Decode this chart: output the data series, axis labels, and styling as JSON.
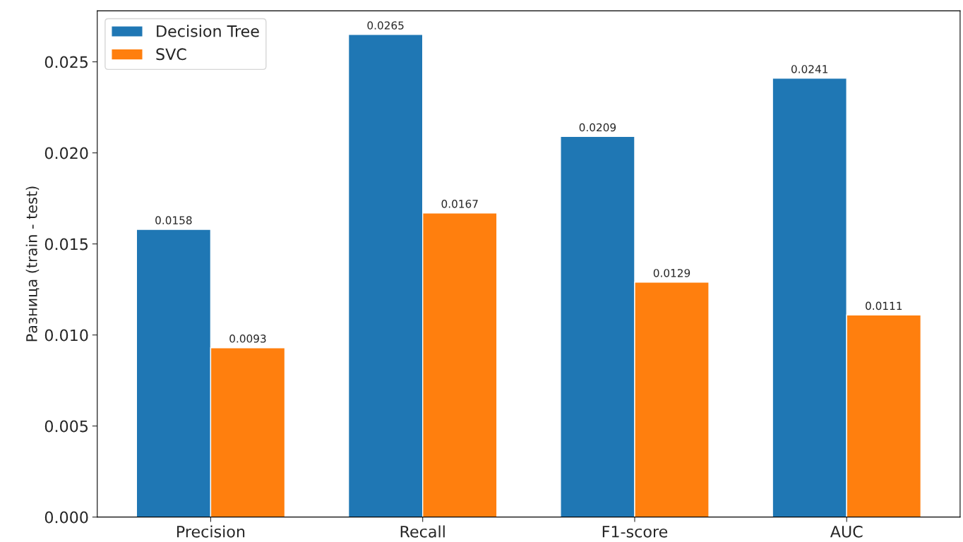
{
  "chart_data": {
    "type": "bar",
    "ylabel": "Разница (train - test)",
    "categories": [
      "Precision",
      "Recall",
      "F1-score",
      "AUC"
    ],
    "series": [
      {
        "name": "Decision Tree",
        "color": "#1f77b4",
        "values": [
          0.0158,
          0.0265,
          0.0209,
          0.0241
        ]
      },
      {
        "name": "SVC",
        "color": "#ff7f0e",
        "values": [
          0.0093,
          0.0167,
          0.0129,
          0.0111
        ]
      }
    ],
    "ylim": [
      0,
      0.0278
    ],
    "yticks": [
      "0.000",
      "0.005",
      "0.010",
      "0.015",
      "0.020",
      "0.025"
    ],
    "data_labels": true,
    "legend": "top left",
    "grid": false
  }
}
